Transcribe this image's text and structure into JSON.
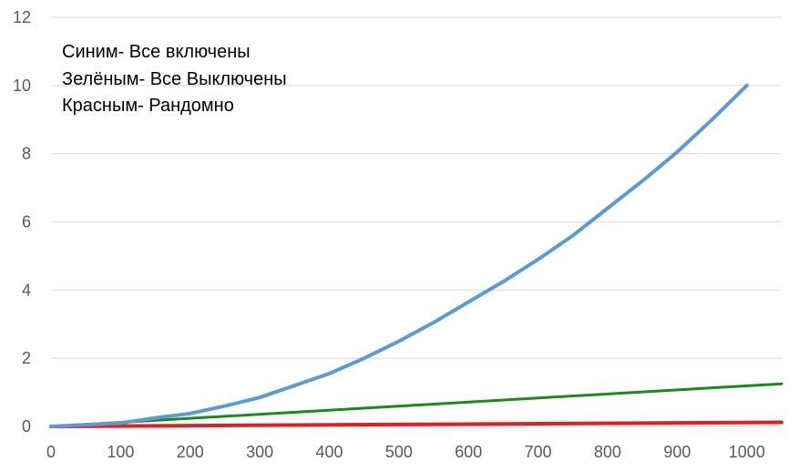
{
  "chart_data": {
    "type": "line",
    "title": "",
    "xlabel": "",
    "ylabel": "",
    "xlim": [
      0,
      1050
    ],
    "ylim": [
      0,
      12
    ],
    "x_ticks": [
      0,
      100,
      200,
      300,
      400,
      500,
      600,
      700,
      800,
      900,
      1000
    ],
    "y_ticks": [
      0,
      2,
      4,
      6,
      8,
      10,
      12
    ],
    "grid": "horizontal",
    "annotations": [
      "Синим- Все включены",
      "Зелёным- Все Выключены",
      "Красным- Рандомно"
    ],
    "series": [
      {
        "color": "#5B9BD5",
        "x": [
          0,
          100,
          150,
          200,
          250,
          300,
          350,
          400,
          450,
          500,
          550,
          600,
          650,
          700,
          750,
          800,
          850,
          900,
          950,
          1000
        ],
        "y": [
          0.0,
          0.1,
          0.25,
          0.38,
          0.6,
          0.85,
          1.2,
          1.55,
          2.0,
          2.5,
          3.05,
          3.65,
          4.25,
          4.9,
          5.6,
          6.4,
          7.2,
          8.05,
          9.0,
          10.0
        ]
      },
      {
        "color": "#1A8A1A",
        "x": [
          0,
          1050
        ],
        "y": [
          0.0,
          1.25
        ]
      },
      {
        "color": "#E02020",
        "x": [
          0,
          1050
        ],
        "y": [
          0.0,
          0.12
        ]
      }
    ]
  }
}
